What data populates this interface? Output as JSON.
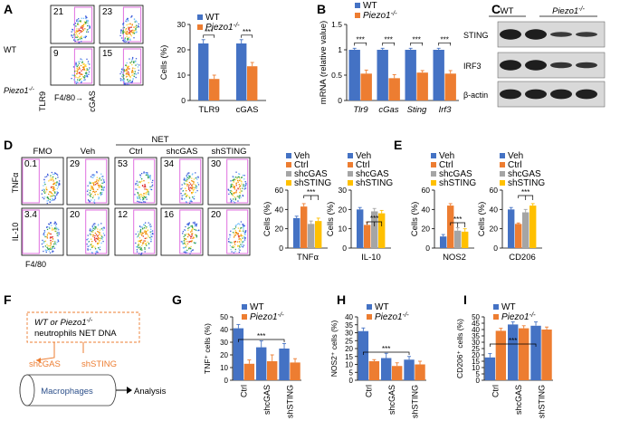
{
  "colors": {
    "wt": "#4472C4",
    "ko": "#ED7D31",
    "veh": "#4472C4",
    "ctrl": "#ED7D31",
    "shcgas": "#A5A5A5",
    "shsting": "#FFC000",
    "gate": "#E070E0"
  },
  "panels": {
    "A": {
      "letter": "A",
      "row_labels": [
        "WT",
        "Piezo1-/-"
      ],
      "ylabels": [
        "TLR9",
        "cGAS"
      ],
      "xlabel": "F4/80→",
      "percents": [
        [
          "21",
          "23"
        ],
        [
          "9",
          "15"
        ]
      ]
    },
    "D": {
      "letter": "D",
      "net_label": "NET",
      "col_labels": [
        "FMO",
        "Veh",
        "Ctrl",
        "shcGAS",
        "shSTING"
      ],
      "row_labels": [
        "TNFα",
        "IL-10"
      ],
      "xlabel": "F4/80",
      "percents": [
        [
          "0.1",
          "29",
          "53",
          "34",
          "30"
        ],
        [
          "3.4",
          "20",
          "12",
          "16",
          "20"
        ]
      ]
    },
    "C": {
      "letter": "C",
      "headers": [
        "WT",
        "Piezo1-/-"
      ],
      "blot_labels": [
        "STING",
        "IRF3",
        "β-actin"
      ]
    },
    "E": {
      "letter": "E"
    },
    "F": {
      "letter": "F",
      "box_text": [
        "WT or Piezo1-/-",
        "neutrophils NET DNA"
      ],
      "sh1": "shcGAS",
      "sh2": "shSTING",
      "cyl": "Macrophages",
      "analysis": "Analysis"
    }
  },
  "chart_data": [
    {
      "id": "A",
      "type": "bar",
      "categories": [
        "TLR9",
        "cGAS"
      ],
      "series": [
        {
          "name": "WT",
          "values": [
            22.5,
            22.5
          ],
          "err": [
            1.5,
            1.5
          ]
        },
        {
          "name": "Piezo1-/-",
          "values": [
            8.5,
            13.5
          ],
          "err": [
            1.5,
            1.5
          ]
        }
      ],
      "ylabel": "Cells (%)",
      "ylim": [
        0,
        30
      ],
      "yticks": [
        0,
        10,
        20,
        30
      ],
      "sig": [
        "***",
        "***"
      ],
      "legend": "top-left"
    },
    {
      "id": "B",
      "type": "bar",
      "letter": "B",
      "categories": [
        "Tlr9",
        "cGas",
        "Sting",
        "Irf3"
      ],
      "series": [
        {
          "name": "WT",
          "values": [
            1.0,
            1.0,
            1.0,
            1.0
          ],
          "err": [
            0.03,
            0.03,
            0.03,
            0.03
          ]
        },
        {
          "name": "Piezo1-/-",
          "values": [
            0.53,
            0.44,
            0.55,
            0.53
          ],
          "err": [
            0.07,
            0.07,
            0.04,
            0.06
          ]
        }
      ],
      "ylabel": "mRNA (relative value)",
      "ylim": [
        0,
        1.5
      ],
      "yticks": [
        "0",
        "0.5",
        "1",
        "1.5"
      ],
      "sig": [
        "***",
        "***",
        "***",
        "***"
      ],
      "legend": "top-left"
    },
    {
      "id": "D1",
      "type": "bar",
      "categories": [
        "TNFα"
      ],
      "series": [
        {
          "name": "Veh",
          "values": [
            31
          ],
          "err": [
            2
          ]
        },
        {
          "name": "Ctrl",
          "values": [
            43
          ],
          "err": [
            3
          ]
        },
        {
          "name": "shcGAS",
          "values": [
            25
          ],
          "err": [
            3
          ]
        },
        {
          "name": "shSTING",
          "values": [
            28
          ],
          "err": [
            3
          ]
        }
      ],
      "ylabel": "Cells (%)",
      "ylim": [
        0,
        60
      ],
      "yticks": [
        0,
        20,
        40,
        60
      ],
      "sig": "***",
      "legend": "top-left"
    },
    {
      "id": "D2",
      "type": "bar",
      "categories": [
        "IL-10"
      ],
      "series": [
        {
          "name": "Veh",
          "values": [
            20
          ],
          "err": [
            1
          ]
        },
        {
          "name": "Ctrl",
          "values": [
            12
          ],
          "err": [
            1.5
          ]
        },
        {
          "name": "shcGAS",
          "values": [
            19
          ],
          "err": [
            1.5
          ]
        },
        {
          "name": "shSTING",
          "values": [
            18
          ],
          "err": [
            1.5
          ]
        }
      ],
      "ylabel": "Cells (%)",
      "ylim": [
        0,
        30
      ],
      "yticks": [
        0,
        10,
        20,
        30
      ],
      "sig": "***",
      "legend": "top-left"
    },
    {
      "id": "E1",
      "type": "bar",
      "categories": [
        "NOS2"
      ],
      "series": [
        {
          "name": "Veh",
          "values": [
            12
          ],
          "err": [
            2
          ]
        },
        {
          "name": "Ctrl",
          "values": [
            44
          ],
          "err": [
            2
          ]
        },
        {
          "name": "shcGAS",
          "values": [
            18
          ],
          "err": [
            3
          ]
        },
        {
          "name": "shSTING",
          "values": [
            17
          ],
          "err": [
            3
          ]
        }
      ],
      "ylabel": "Cells (%)",
      "ylim": [
        0,
        60
      ],
      "yticks": [
        0,
        20,
        40,
        60
      ],
      "sig": "***",
      "legend": "top-left"
    },
    {
      "id": "E2",
      "type": "bar",
      "categories": [
        "CD206"
      ],
      "series": [
        {
          "name": "Veh",
          "values": [
            40
          ],
          "err": [
            2
          ]
        },
        {
          "name": "Ctrl",
          "values": [
            25
          ],
          "err": [
            1
          ]
        },
        {
          "name": "shcGAS",
          "values": [
            37
          ],
          "err": [
            3
          ]
        },
        {
          "name": "shSTING",
          "values": [
            44
          ],
          "err": [
            2
          ]
        }
      ],
      "ylabel": "Cells (%)",
      "ylim": [
        0,
        60
      ],
      "yticks": [
        0,
        20,
        40,
        60
      ],
      "sig": "***",
      "legend": "top-left"
    },
    {
      "id": "G",
      "type": "bar",
      "letter": "G",
      "categories": [
        "Ctrl",
        "shcGAS",
        "shSTING"
      ],
      "series": [
        {
          "name": "WT",
          "values": [
            41,
            26,
            25
          ],
          "err": [
            3,
            5,
            4
          ]
        },
        {
          "name": "Piezo1-/-",
          "values": [
            13,
            15,
            14
          ],
          "err": [
            3,
            5,
            3
          ]
        }
      ],
      "ylabel": "TNF⁺ cells (%)",
      "ylim": [
        0,
        50
      ],
      "yticks": [
        0,
        10,
        20,
        30,
        40,
        50
      ],
      "sig": "***",
      "legend": "top-right"
    },
    {
      "id": "H",
      "type": "bar",
      "letter": "H",
      "categories": [
        "Ctrl",
        "shcGAS",
        "shSTING"
      ],
      "series": [
        {
          "name": "WT",
          "values": [
            31,
            14,
            13
          ],
          "err": [
            2,
            3,
            2
          ]
        },
        {
          "name": "Piezo1-/-",
          "values": [
            12,
            9,
            10
          ],
          "err": [
            1,
            2,
            2
          ]
        }
      ],
      "ylabel": "NOS2⁺ cells (%)",
      "ylim": [
        0,
        40
      ],
      "yticks": [
        0,
        5,
        10,
        15,
        20,
        25,
        30,
        35,
        40
      ],
      "sig": "***",
      "legend": "top-right"
    },
    {
      "id": "I",
      "type": "bar",
      "letter": "I",
      "categories": [
        "Ctrl",
        "shcGAS",
        "shSTING"
      ],
      "series": [
        {
          "name": "WT",
          "values": [
            18,
            44,
            43
          ],
          "err": [
            3,
            2,
            3
          ]
        },
        {
          "name": "Piezo1-/-",
          "values": [
            39,
            41,
            40
          ],
          "err": [
            2,
            2,
            2
          ]
        }
      ],
      "ylabel": "CD206⁺ cells (%)",
      "ylim": [
        0,
        50
      ],
      "yticks": [
        0,
        5,
        10,
        15,
        20,
        25,
        30,
        35,
        40,
        45,
        50
      ],
      "sig": "***",
      "legend": "top-left"
    }
  ]
}
